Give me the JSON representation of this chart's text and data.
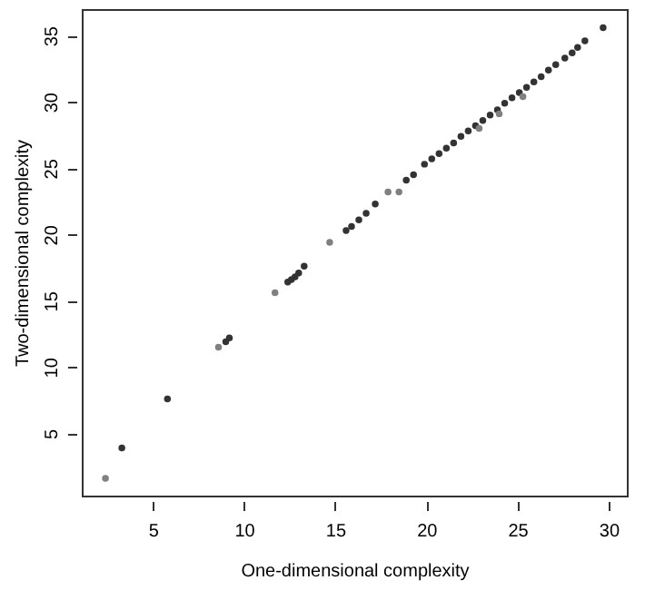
{
  "chart_data": {
    "type": "scatter",
    "xlabel": "One-dimensional complexity",
    "ylabel": "Two-dimensional complexity",
    "xlim": [
      1.1,
      31.0
    ],
    "ylim": [
      0.3,
      37.0
    ],
    "xticks": [
      5,
      10,
      15,
      20,
      25,
      30
    ],
    "yticks": [
      5,
      10,
      15,
      20,
      25,
      30,
      35
    ],
    "grid": false,
    "marker": "circle",
    "series": [
      {
        "color": "#333333",
        "x": [
          3.3,
          5.8,
          9.0,
          9.2,
          12.4,
          12.6,
          12.8,
          13.0,
          13.3,
          15.6,
          15.9,
          16.3,
          16.7,
          17.2,
          18.9,
          19.3,
          19.9,
          20.3,
          20.7,
          21.1,
          21.5,
          21.9,
          22.3,
          22.7,
          23.1,
          23.5,
          23.9,
          24.3,
          24.7,
          25.1,
          25.5,
          25.9,
          26.3,
          26.7,
          27.1,
          27.6,
          28.0,
          28.3,
          28.7,
          29.7
        ],
        "values": [
          3.9,
          7.6,
          11.9,
          12.2,
          16.4,
          16.6,
          16.8,
          17.1,
          17.6,
          20.3,
          20.6,
          21.1,
          21.6,
          22.3,
          24.1,
          24.5,
          25.3,
          25.7,
          26.1,
          26.5,
          26.9,
          27.4,
          27.8,
          28.2,
          28.6,
          29.0,
          29.4,
          29.9,
          30.3,
          30.7,
          31.1,
          31.5,
          31.9,
          32.4,
          32.8,
          33.3,
          33.7,
          34.1,
          34.6,
          35.6
        ]
      },
      {
        "color": "#808080",
        "x": [
          2.4,
          8.6,
          11.7,
          14.7,
          17.9,
          18.5,
          22.9,
          24.0,
          25.3
        ],
        "values": [
          1.6,
          11.5,
          15.6,
          19.4,
          23.2,
          23.2,
          28.0,
          29.1,
          30.4
        ]
      }
    ]
  }
}
